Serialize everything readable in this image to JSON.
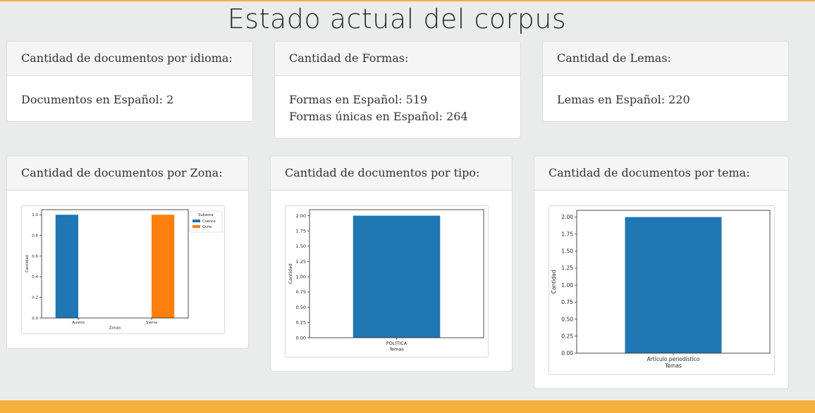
{
  "page": {
    "title": "Estado actual del corpus"
  },
  "colors": {
    "accent": "#f4b13e",
    "series_blue": "#1f77b4",
    "series_orange": "#ff7f0e"
  },
  "cards": {
    "idioma": {
      "title": "Cantidad de documentos por idioma:",
      "lines": [
        "Documentos en Español: 2"
      ]
    },
    "formas": {
      "title": "Cantidad de Formas:",
      "lines": [
        "Formas en Español: 519",
        "Formas únicas en Español: 264"
      ]
    },
    "lemas": {
      "title": "Cantidad de Lemas:",
      "lines": [
        "Lemas en Español: 220"
      ]
    },
    "zona": {
      "title": "Cantidad de documentos por Zona:"
    },
    "tipo": {
      "title": "Cantidad de documentos por tipo:"
    },
    "tema": {
      "title": "Cantidad de documentos por tema:"
    }
  },
  "chart_data": [
    {
      "type": "bar",
      "categories": [
        "Austro",
        "Sierra"
      ],
      "series": [
        {
          "name": "Cuenca",
          "color": "#1f77b4",
          "values": [
            1,
            0
          ]
        },
        {
          "name": "Quito",
          "color": "#ff7f0e",
          "values": [
            0,
            1
          ]
        }
      ],
      "xlabel": "Zonas",
      "ylabel": "Cantidad",
      "ylim": [
        0,
        1.0
      ],
      "yticks": [
        "0.0",
        "0.2",
        "0.4",
        "0.6",
        "0.8",
        "1.0"
      ],
      "legend_title": "Subzona",
      "legend_position": "top-right",
      "grid": false
    },
    {
      "type": "bar",
      "categories": [
        "POLITICA"
      ],
      "values": [
        2
      ],
      "color": "#1f77b4",
      "xlabel": "Temas",
      "ylabel": "Cantidad",
      "ylim": [
        0,
        2.0
      ],
      "yticks": [
        "0.00",
        "0.25",
        "0.50",
        "0.75",
        "1.00",
        "1.25",
        "1.50",
        "1.75",
        "2.00"
      ],
      "grid": false
    },
    {
      "type": "bar",
      "categories": [
        "Artículo periodístico"
      ],
      "values": [
        2
      ],
      "color": "#1f77b4",
      "xlabel": "Temas",
      "ylabel": "Cantidad",
      "ylim": [
        0,
        2.0
      ],
      "yticks": [
        "0.00",
        "0.25",
        "0.50",
        "0.75",
        "1.00",
        "1.25",
        "1.50",
        "1.75",
        "2.00"
      ],
      "grid": false
    }
  ]
}
